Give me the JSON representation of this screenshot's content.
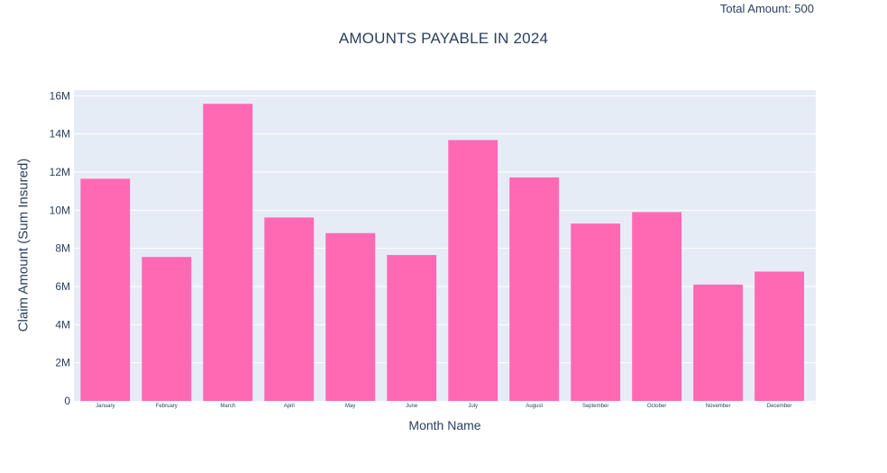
{
  "annotation": "Total Amount: 500",
  "chart_data": {
    "type": "bar",
    "title": "AMOUNTS PAYABLE IN 2024",
    "xlabel": "Month Name",
    "ylabel": "Claim Amount (Sum Insured)",
    "categories": [
      "January",
      "February",
      "March",
      "April",
      "May",
      "June",
      "July",
      "August",
      "September",
      "October",
      "November",
      "December"
    ],
    "values": [
      11650000,
      7550000,
      15580000,
      9620000,
      8800000,
      7650000,
      13680000,
      11720000,
      9300000,
      9900000,
      6100000,
      6780000
    ],
    "ylim": [
      0,
      16300000
    ],
    "yticks": [
      0,
      2000000,
      4000000,
      6000000,
      8000000,
      10000000,
      12000000,
      14000000,
      16000000
    ],
    "ytick_labels": [
      "0",
      "2M",
      "4M",
      "6M",
      "8M",
      "10M",
      "12M",
      "14M",
      "16M"
    ],
    "bar_color": "#ff69b4",
    "plot_bg": "#e5ecf6",
    "grid": true,
    "legend": false
  }
}
